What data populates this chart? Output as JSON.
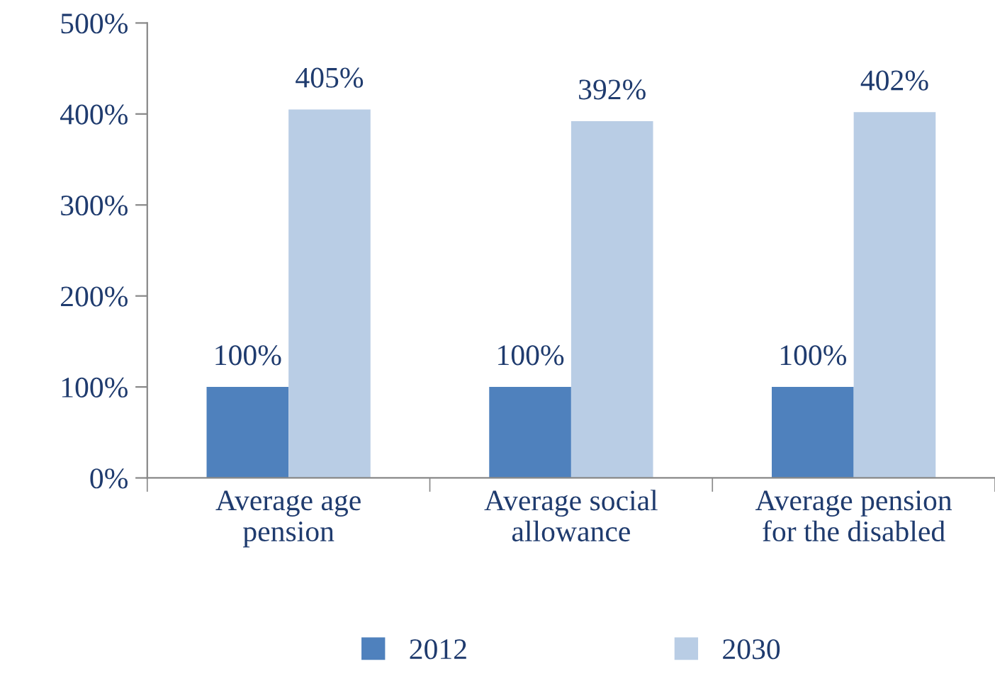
{
  "chart_data": {
    "type": "bar",
    "categories": [
      "Average age\npension",
      "Average social\nallowance",
      "Average pension\nfor the disabled"
    ],
    "series": [
      {
        "name": "2012",
        "color": "#4f81bd",
        "values": [
          100,
          100,
          100
        ],
        "value_labels": [
          "100%",
          "100%",
          "100%"
        ]
      },
      {
        "name": "2030",
        "color": "#b9cde5",
        "values": [
          405,
          392,
          402
        ],
        "value_labels": [
          "405%",
          "392%",
          "402%"
        ]
      }
    ],
    "ylim": [
      0,
      500
    ],
    "yticks": [
      {
        "value": 0,
        "label": "0%"
      },
      {
        "value": 100,
        "label": "100%"
      },
      {
        "value": 200,
        "label": "200%"
      },
      {
        "value": 300,
        "label": "300%"
      },
      {
        "value": 400,
        "label": "400%"
      },
      {
        "value": 500,
        "label": "500%"
      }
    ],
    "grid": false,
    "legend": "bottom"
  }
}
